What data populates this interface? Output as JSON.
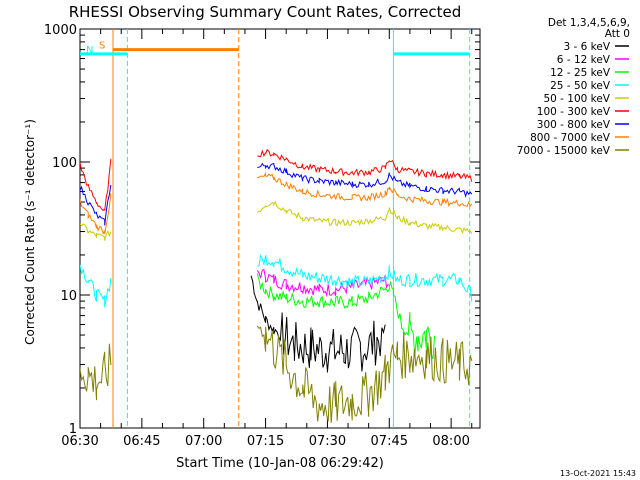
{
  "chart_data": {
    "type": "line",
    "title": "RHESSI Observing Summary Count Rates, Corrected",
    "xlabel": "Start Time (10-Jan-08 06:29:42)",
    "ylabel": "Corrected Count Rate (s⁻¹ detector⁻¹)",
    "y_scale": "log",
    "ylim": [
      1,
      1000
    ],
    "xlim_minutes_after_0630": [
      0,
      97
    ],
    "x_ticks": [
      {
        "label": "06:30",
        "minute": 0
      },
      {
        "label": "06:45",
        "minute": 15
      },
      {
        "label": "07:00",
        "minute": 30
      },
      {
        "label": "07:15",
        "minute": 45
      },
      {
        "label": "07:30",
        "minute": 60
      },
      {
        "label": "07:45",
        "minute": 75
      },
      {
        "label": "08:00",
        "minute": 90
      }
    ],
    "y_ticks": [
      {
        "label": "1",
        "value": 1
      },
      {
        "label": "10",
        "value": 10
      },
      {
        "label": "100",
        "value": 100
      },
      {
        "label": "1000",
        "value": 1000
      }
    ],
    "legend": {
      "placement": "top-right",
      "header": [
        "Det 1,3,4,5,6,9,",
        "Att 0"
      ]
    },
    "series": [
      {
        "name": "3 - 6 keV",
        "color": "#000000",
        "x": [
          0,
          3,
          6,
          9,
          12,
          41.5,
          43,
          45,
          47,
          49,
          52,
          56,
          60,
          64,
          68,
          72,
          74,
          75,
          77,
          80,
          84,
          88,
          92,
          95
        ],
        "y": [
          null,
          null,
          null,
          null,
          null,
          14,
          9,
          6.5,
          5.5,
          5,
          4.2,
          4,
          3.8,
          3.8,
          3.9,
          4.5,
          5.5,
          null,
          null,
          null,
          null,
          null,
          null,
          null
        ]
      },
      {
        "name": "6 - 12 keV",
        "color": "#ff00ff",
        "x": [
          43,
          45,
          47,
          50,
          54,
          58,
          62,
          66,
          70,
          74,
          75
        ],
        "y": [
          15,
          14,
          13,
          12,
          11.5,
          11,
          11,
          11.5,
          12,
          13,
          12
        ]
      },
      {
        "name": "12 - 25 keV",
        "color": "#00ff00",
        "x": [
          43,
          45,
          47,
          50,
          54,
          58,
          62,
          66,
          70,
          74,
          75,
          76,
          78,
          80,
          82,
          84,
          86
        ],
        "y": [
          13,
          11,
          10,
          9.5,
          9,
          9,
          8.8,
          8.8,
          9.5,
          11,
          12,
          10,
          6,
          5,
          5,
          5,
          5
        ]
      },
      {
        "name": "25 - 50 keV",
        "color": "#00ffff",
        "x": [
          0,
          2,
          4,
          6,
          7.5,
          43,
          45,
          47,
          50,
          54,
          58,
          62,
          66,
          70,
          74,
          75,
          77,
          80,
          84,
          88,
          92,
          95
        ],
        "y": [
          17,
          13,
          10,
          9,
          13,
          17,
          19,
          18,
          16,
          14,
          13.5,
          13,
          12.5,
          12.5,
          14,
          15,
          13,
          13,
          13,
          13,
          13,
          10
        ]
      },
      {
        "name": "50 - 100 keV",
        "color": "#cccc00",
        "x": [
          0,
          2,
          4,
          6,
          7.5,
          43,
          45,
          47,
          50,
          54,
          58,
          62,
          66,
          70,
          74,
          75,
          77,
          80,
          84,
          88,
          92,
          95
        ],
        "y": [
          35,
          30,
          28,
          27,
          30,
          42,
          48,
          50,
          43,
          38,
          36,
          35,
          35,
          36,
          38,
          45,
          38,
          35,
          33,
          32,
          31,
          30
        ]
      },
      {
        "name": "100 - 300 keV",
        "color": "#ff0000",
        "x": [
          0,
          2,
          4,
          6,
          7.5,
          43,
          45,
          47,
          50,
          54,
          58,
          62,
          66,
          70,
          74,
          75,
          77,
          80,
          84,
          88,
          92,
          95
        ],
        "y": [
          95,
          65,
          50,
          42,
          100,
          115,
          118,
          115,
          105,
          92,
          88,
          85,
          83,
          84,
          90,
          105,
          88,
          85,
          82,
          80,
          78,
          75
        ]
      },
      {
        "name": "300 - 800 keV",
        "color": "#0000ff",
        "x": [
          0,
          2,
          4,
          6,
          7.5,
          43,
          45,
          47,
          50,
          54,
          58,
          62,
          66,
          70,
          74,
          75,
          77,
          80,
          84,
          88,
          92,
          95
        ],
        "y": [
          65,
          50,
          40,
          35,
          70,
          90,
          95,
          93,
          85,
          75,
          72,
          70,
          68,
          68,
          72,
          80,
          70,
          66,
          63,
          61,
          60,
          57
        ]
      },
      {
        "name": "800 - 7000 keV",
        "color": "#ff8000",
        "x": [
          0,
          2,
          4,
          6,
          7.5,
          43,
          45,
          47,
          50,
          54,
          58,
          62,
          66,
          70,
          74,
          75,
          77,
          80,
          84,
          88,
          92,
          95
        ],
        "y": [
          50,
          40,
          33,
          30,
          55,
          75,
          78,
          76,
          68,
          60,
          57,
          55,
          54,
          54,
          58,
          65,
          56,
          53,
          51,
          50,
          49,
          47
        ]
      },
      {
        "name": "7000 - 15000 keV",
        "color": "#808000",
        "x": [
          0,
          2,
          4,
          6,
          7.5,
          43,
          45,
          47,
          50,
          54,
          58,
          62,
          66,
          70,
          74,
          75,
          77,
          80,
          84,
          88,
          92,
          95
        ],
        "y": [
          3,
          2.5,
          2.2,
          2.5,
          3,
          6,
          5,
          4,
          3,
          2,
          1.5,
          1.5,
          1.6,
          1.8,
          2.5,
          3,
          3.5,
          3.5,
          3.5,
          3.2,
          3,
          3
        ]
      }
    ],
    "annotations": [
      {
        "label": "S",
        "color": "#ff8000",
        "x_start": 8,
        "x_end": 38.5,
        "level": 700
      },
      {
        "label": "N",
        "color": "#00ffff",
        "x_start": 0,
        "x_end": 11.5,
        "level": 650
      },
      {
        "label": "",
        "color": "#00ffff",
        "x_start": 76,
        "x_end": 94.5,
        "level": 650
      }
    ],
    "vertical_lines": [
      {
        "minute": 8,
        "color": "#ff8000",
        "style": "solid"
      },
      {
        "minute": 11.5,
        "color": "#00ffff",
        "style": "dashed"
      },
      {
        "minute": 38.5,
        "color": "#ff8000",
        "style": "dashed"
      },
      {
        "minute": 76,
        "color": "#00ffff",
        "style": "solid"
      },
      {
        "minute": 94.5,
        "color": "#00ffff",
        "style": "dashed"
      }
    ],
    "footer_date": "13-Oct-2021 15:43"
  }
}
